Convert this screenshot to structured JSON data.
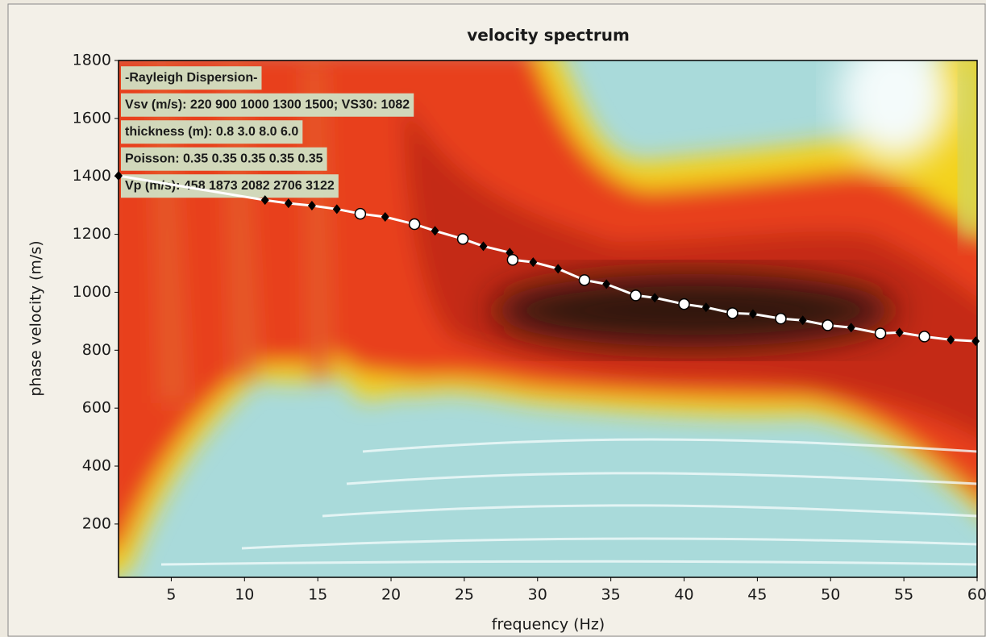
{
  "chart_data": {
    "type": "scatter",
    "title": "velocity spectrum",
    "xlabel": "frequency (Hz)",
    "ylabel": "phase velocity (m/s)",
    "xlim": [
      1.4,
      60
    ],
    "ylim": [
      16,
      1800
    ],
    "xticks": [
      5,
      10,
      15,
      20,
      25,
      30,
      35,
      40,
      45,
      50,
      55,
      60
    ],
    "yticks": [
      200,
      400,
      600,
      800,
      1000,
      1200,
      1400,
      1600,
      1800
    ],
    "line_color": "#ffffff",
    "series": [
      {
        "color": "#000000",
        "x": [
          1.4,
          11.4,
          13.0,
          14.6,
          16.3,
          17.9,
          19.6,
          21.6,
          23.0,
          24.9,
          26.3,
          28.1,
          28.3,
          29.7,
          31.4,
          33.2,
          34.7,
          36.7,
          38.0,
          40.0,
          41.5,
          43.3,
          44.7,
          46.6,
          48.1,
          49.8,
          51.4,
          53.4,
          54.7,
          56.4,
          58.2,
          59.9
        ],
        "values": [
          1402,
          1318,
          1307,
          1299,
          1287,
          1271,
          1260,
          1235,
          1212,
          1184,
          1159,
          1137,
          1112,
          1104,
          1081,
          1042,
          1028,
          989,
          981,
          959,
          948,
          928,
          925,
          909,
          903,
          886,
          878,
          858,
          861,
          847,
          836,
          831
        ],
        "markers": [
          "diamond",
          "diamond",
          "diamond",
          "diamond",
          "diamond",
          "circle",
          "diamond",
          "circle",
          "diamond",
          "circle",
          "diamond",
          "diamond",
          "circle",
          "diamond",
          "diamond",
          "circle",
          "diamond",
          "circle",
          "diamond",
          "circle",
          "diamond",
          "circle",
          "diamond",
          "circle",
          "diamond",
          "circle",
          "diamond",
          "circle",
          "diamond",
          "circle",
          "diamond",
          "diamond"
        ]
      }
    ],
    "annotations": [
      "-Rayleigh Dispersion-",
      "Vsv (m/s): 220   900  1000  1300  1500; VS30: 1082",
      "thickness (m): 0.8    3.0    8.0    6.0",
      "Poisson: 0.35  0.35  0.35  0.35  0.35",
      "Vp (m/s): 458  1873  2082  2706  3122"
    ],
    "annotation_background": "#cfe3c6"
  }
}
